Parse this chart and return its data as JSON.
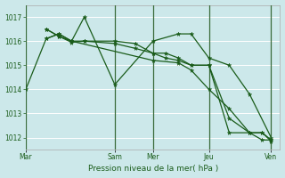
{
  "background_color": "#cce8ea",
  "grid_color": "#ffffff",
  "line_color": "#1a5c1a",
  "text_color": "#1a5c1a",
  "xlabel": "Pression niveau de la mer( hPa )",
  "ylim": [
    1011.5,
    1017.5
  ],
  "yticks": [
    1012,
    1013,
    1014,
    1015,
    1016,
    1017
  ],
  "xtick_labels": [
    "Mar",
    "",
    "",
    "",
    "",
    "",
    "",
    "Sam",
    "Mer",
    "",
    "",
    "",
    "",
    "Jeu",
    "",
    "",
    "",
    "",
    "Ven"
  ],
  "vline_positions": [
    0.0,
    0.35,
    0.5,
    0.72,
    0.965
  ],
  "series": [
    {
      "x": [
        0.0,
        0.08,
        0.13,
        0.18,
        0.5,
        0.6,
        0.65,
        0.72,
        0.8,
        0.88,
        0.93,
        0.965
      ],
      "y": [
        1014.0,
        1016.1,
        1016.3,
        1016.0,
        1015.2,
        1015.1,
        1014.8,
        1014.0,
        1013.2,
        1012.2,
        1011.9,
        1011.9
      ]
    },
    {
      "x": [
        0.08,
        0.13,
        0.18,
        0.23,
        0.35,
        0.43,
        0.5,
        0.55,
        0.6,
        0.65,
        0.72,
        0.8,
        0.88,
        0.93,
        0.965
      ],
      "y": [
        1016.5,
        1016.2,
        1015.95,
        1016.0,
        1016.0,
        1015.9,
        1015.5,
        1015.5,
        1015.3,
        1015.0,
        1015.0,
        1012.2,
        1012.2,
        1012.2,
        1011.9
      ]
    },
    {
      "x": [
        0.08,
        0.13,
        0.18,
        0.23,
        0.35,
        0.43,
        0.5,
        0.55,
        0.6,
        0.65,
        0.72,
        0.8,
        0.88,
        0.93,
        0.965
      ],
      "y": [
        1016.1,
        1016.3,
        1016.0,
        1016.0,
        1015.9,
        1015.7,
        1015.5,
        1015.3,
        1015.2,
        1015.0,
        1015.0,
        1012.8,
        1012.2,
        1012.2,
        1011.85
      ]
    },
    {
      "x": [
        0.08,
        0.13,
        0.18,
        0.23,
        0.35,
        0.5,
        0.6,
        0.65,
        0.72,
        0.8,
        0.88,
        0.965
      ],
      "y": [
        1016.5,
        1016.2,
        1016.0,
        1017.0,
        1014.2,
        1016.0,
        1016.3,
        1016.3,
        1015.3,
        1015.0,
        1013.8,
        1012.0
      ]
    }
  ],
  "xlim": [
    0.0,
    1.0
  ],
  "figsize": [
    3.2,
    2.0
  ],
  "dpi": 100
}
